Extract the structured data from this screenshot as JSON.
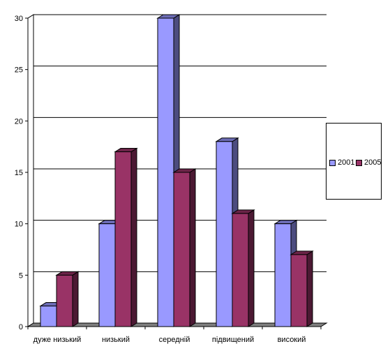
{
  "chart_data": {
    "type": "bar",
    "categories": [
      "дуже низький",
      "низький",
      "середній",
      "підвищений",
      "високий"
    ],
    "series": [
      {
        "name": "2001",
        "values": [
          2,
          10,
          30,
          18,
          10
        ],
        "color": "#9999FF",
        "side_color": "#4C4C7F",
        "top_color": "#6C6CB5"
      },
      {
        "name": "2005",
        "values": [
          5,
          17,
          15,
          11,
          7
        ],
        "color": "#993366",
        "side_color": "#4C1933",
        "top_color": "#6C2448"
      }
    ],
    "y_ticks": [
      "0",
      "5",
      "10",
      "15",
      "20",
      "25",
      "30"
    ],
    "ylim": [
      0,
      30
    ],
    "grid": true,
    "legend_position": "right",
    "title": "",
    "xlabel": "",
    "ylabel": ""
  }
}
